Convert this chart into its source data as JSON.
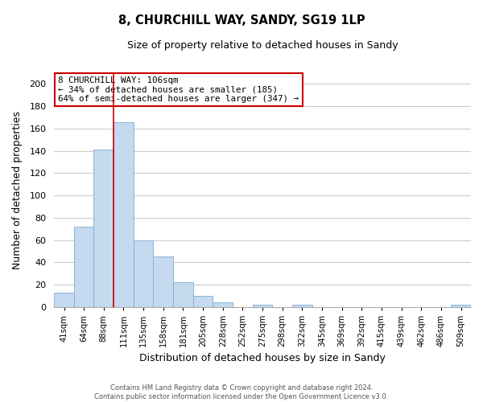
{
  "title": "8, CHURCHILL WAY, SANDY, SG19 1LP",
  "subtitle": "Size of property relative to detached houses in Sandy",
  "xlabel": "Distribution of detached houses by size in Sandy",
  "ylabel": "Number of detached properties",
  "bar_color": "#c5d9ef",
  "bar_edge_color": "#7aafd4",
  "categories": [
    "41sqm",
    "64sqm",
    "88sqm",
    "111sqm",
    "135sqm",
    "158sqm",
    "181sqm",
    "205sqm",
    "228sqm",
    "252sqm",
    "275sqm",
    "298sqm",
    "322sqm",
    "345sqm",
    "369sqm",
    "392sqm",
    "415sqm",
    "439sqm",
    "462sqm",
    "486sqm",
    "509sqm"
  ],
  "values": [
    13,
    72,
    141,
    166,
    60,
    45,
    22,
    10,
    4,
    0,
    2,
    0,
    2,
    0,
    0,
    0,
    0,
    0,
    0,
    0,
    2
  ],
  "ylim": [
    0,
    210
  ],
  "yticks": [
    0,
    20,
    40,
    60,
    80,
    100,
    120,
    140,
    160,
    180,
    200
  ],
  "vline_x": 2.5,
  "vline_color": "#cc0000",
  "annotation_text_line1": "8 CHURCHILL WAY: 106sqm",
  "annotation_text_line2": "← 34% of detached houses are smaller (185)",
  "annotation_text_line3": "64% of semi-detached houses are larger (347) →",
  "footer_line1": "Contains HM Land Registry data © Crown copyright and database right 2024.",
  "footer_line2": "Contains public sector information licensed under the Open Government Licence v3.0.",
  "background_color": "#ffffff",
  "grid_color": "#cccccc"
}
